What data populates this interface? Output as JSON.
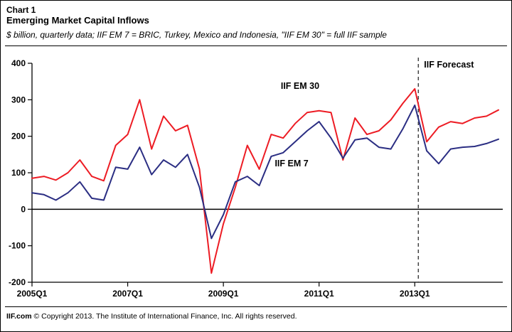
{
  "header": {
    "label": "Chart 1",
    "title": "Emerging Market Capital Inflows",
    "subtitle": "$ billion, quarterly data; IIF EM 7 = BRIC, Turkey, Mexico and Indonesia, \"IIF EM 30\" = full IIF sample"
  },
  "footer": {
    "brand": "IIF.com",
    "text": " © Copyright 2013.  The Institute of International Finance, Inc. All rights reserved."
  },
  "chart_data": {
    "type": "line",
    "title": "Emerging Market Capital Inflows",
    "subtitle": "$ billion, quarterly data",
    "x": [
      "2005Q1",
      "2005Q2",
      "2005Q3",
      "2005Q4",
      "2006Q1",
      "2006Q2",
      "2006Q3",
      "2006Q4",
      "2007Q1",
      "2007Q2",
      "2007Q3",
      "2007Q4",
      "2008Q1",
      "2008Q2",
      "2008Q3",
      "2008Q4",
      "2009Q1",
      "2009Q2",
      "2009Q3",
      "2009Q4",
      "2010Q1",
      "2010Q2",
      "2010Q3",
      "2010Q4",
      "2011Q1",
      "2011Q2",
      "2011Q3",
      "2011Q4",
      "2012Q1",
      "2012Q2",
      "2012Q3",
      "2012Q4",
      "2013Q1",
      "2013Q2",
      "2013Q3",
      "2013Q4",
      "2014Q1",
      "2014Q2",
      "2014Q3",
      "2014Q4"
    ],
    "x_ticks": [
      {
        "index": 0,
        "label": "2005Q1"
      },
      {
        "index": 8,
        "label": "2007Q1"
      },
      {
        "index": 16,
        "label": "2009Q1"
      },
      {
        "index": 24,
        "label": "2011Q1"
      },
      {
        "index": 32,
        "label": "2013Q1"
      }
    ],
    "ylim": [
      -200,
      400
    ],
    "y_ticks": [
      400,
      300,
      200,
      100,
      0,
      -100,
      -200
    ],
    "zero_line": true,
    "series": [
      {
        "name": "IIF EM 30",
        "color": "#ed1c24",
        "values": [
          85,
          90,
          80,
          100,
          135,
          90,
          78,
          175,
          205,
          300,
          165,
          255,
          215,
          230,
          110,
          -175,
          -40,
          60,
          175,
          110,
          205,
          195,
          235,
          265,
          270,
          265,
          135,
          250,
          205,
          215,
          245,
          290,
          330,
          185,
          225,
          240,
          235,
          250,
          255,
          272
        ]
      },
      {
        "name": "IIF EM 7",
        "color": "#2b2e83",
        "values": [
          45,
          40,
          25,
          45,
          75,
          30,
          25,
          115,
          110,
          170,
          95,
          135,
          115,
          150,
          60,
          -80,
          -15,
          75,
          90,
          65,
          145,
          155,
          185,
          215,
          240,
          195,
          140,
          190,
          195,
          170,
          165,
          220,
          285,
          160,
          125,
          165,
          170,
          172,
          180,
          192
        ]
      }
    ],
    "annotations": [
      {
        "text": "IIF EM 30",
        "x_index": 20.8,
        "y": 330
      },
      {
        "text": "IIF EM 7",
        "x_index": 20.3,
        "y": 118
      }
    ],
    "forecast": {
      "label": "IIF Forecast",
      "x_index": 32.3
    }
  }
}
